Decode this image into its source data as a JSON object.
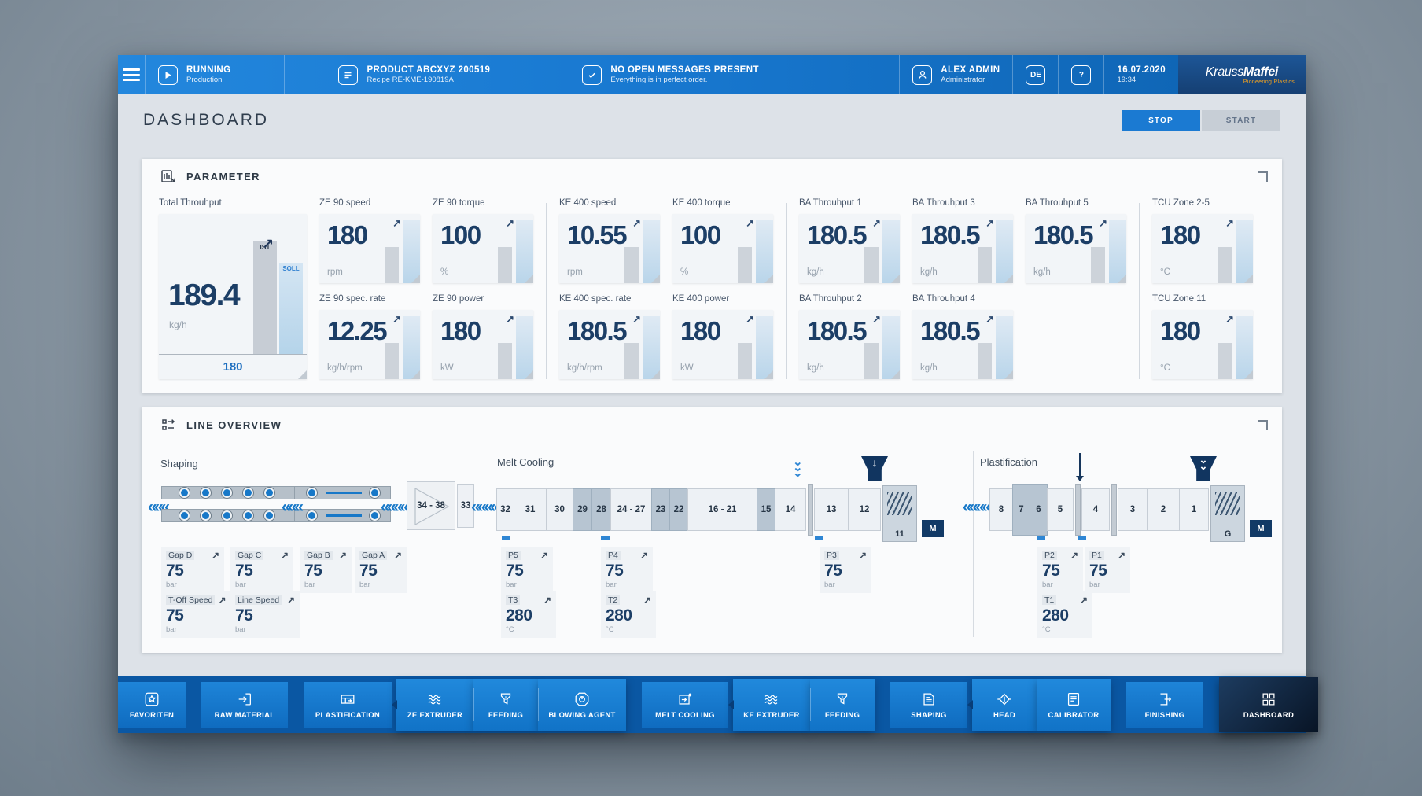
{
  "topbar": {
    "machine_status": {
      "title": "RUNNING",
      "subtitle": "Production"
    },
    "product": {
      "title": "PRODUCT ABCXYZ 200519",
      "subtitle": "Recipe RE-KME-190819A"
    },
    "messages": {
      "title": "NO OPEN MESSAGES PRESENT",
      "subtitle": "Everything is in perfect order."
    },
    "user": {
      "name": "ALEX ADMIN",
      "role": "Administrator"
    },
    "language_badge": "DE",
    "help_badge": "?",
    "date": "16.07.2020",
    "time": "19:34",
    "brand": {
      "name_a": "Krauss",
      "name_b": "Maffei",
      "tagline": "Pioneering Plastics"
    }
  },
  "page": {
    "title": "DASHBOARD",
    "stop": "STOP",
    "start": "START"
  },
  "parameter_panel": {
    "title": "PARAMETER",
    "total": {
      "label": "Total Throuhput",
      "value": "189.4",
      "unit": "kg/h",
      "setpoint": "180",
      "ist": "IST",
      "soll": "SOLL"
    },
    "tiles": {
      "ze_speed": {
        "label": "ZE 90 speed",
        "value": "180",
        "unit": "rpm"
      },
      "ze_torque": {
        "label": "ZE 90 torque",
        "value": "100",
        "unit": "%"
      },
      "ze_rate": {
        "label": "ZE 90 spec. rate",
        "value": "12.25",
        "unit": "kg/h/rpm"
      },
      "ze_power": {
        "label": "ZE 90 power",
        "value": "180",
        "unit": "kW"
      },
      "ke_speed": {
        "label": "KE 400 speed",
        "value": "10.55",
        "unit": "rpm"
      },
      "ke_torque": {
        "label": "KE 400 torque",
        "value": "100",
        "unit": "%"
      },
      "ke_rate": {
        "label": "KE 400 spec. rate",
        "value": "180.5",
        "unit": "kg/h/rpm"
      },
      "ke_power": {
        "label": "KE 400 power",
        "value": "180",
        "unit": "kW"
      },
      "ba1": {
        "label": "BA Throuhput 1",
        "value": "180.5",
        "unit": "kg/h"
      },
      "ba2": {
        "label": "BA Throuhput 2",
        "value": "180.5",
        "unit": "kg/h"
      },
      "ba3": {
        "label": "BA Throuhput 3",
        "value": "180.5",
        "unit": "kg/h"
      },
      "ba4": {
        "label": "BA Throuhput 4",
        "value": "180.5",
        "unit": "kg/h"
      },
      "ba5": {
        "label": "BA Throuhput 5",
        "value": "180.5",
        "unit": "kg/h"
      },
      "tcu25": {
        "label": "TCU Zone 2-5",
        "value": "180",
        "unit": "°C"
      },
      "tcu11": {
        "label": "TCU Zone 11",
        "value": "180",
        "unit": "°C"
      }
    }
  },
  "line_panel": {
    "title": "LINE OVERVIEW",
    "sections": {
      "shaping": "Shaping",
      "melt": "Melt Cooling",
      "plast": "Plastification"
    },
    "shaping": {
      "trapezoid": "34 - 38",
      "block": "33"
    },
    "melt_segments": [
      "32",
      "31",
      "30",
      "29",
      "28",
      "24 - 27",
      "23",
      "22",
      "16 - 21",
      "15",
      "14",
      "13",
      "12"
    ],
    "melt_screw": "11",
    "plast_segments": [
      "8",
      "7",
      "6",
      "5",
      "4",
      "3",
      "2",
      "1"
    ],
    "plast_gear": "G",
    "motor": "M",
    "chevrons": {
      "shaping_left": "«««",
      "shaping_mid": "«««",
      "shaping_right": "«««««",
      "melt_in": "«««««",
      "plast_in": "«««««"
    },
    "gauges": {
      "gap_d": {
        "label": "Gap D",
        "value": "75",
        "unit": "bar"
      },
      "gap_c": {
        "label": "Gap C",
        "value": "75",
        "unit": "bar"
      },
      "gap_b": {
        "label": "Gap B",
        "value": "75",
        "unit": "bar"
      },
      "gap_a": {
        "label": "Gap A",
        "value": "75",
        "unit": "bar"
      },
      "toff": {
        "label": "T-Off Speed",
        "value": "75",
        "unit": "bar"
      },
      "line_speed": {
        "label": "Line Speed",
        "value": "75",
        "unit": "bar"
      },
      "p5": {
        "label": "P5",
        "value": "75",
        "unit": "bar"
      },
      "p4": {
        "label": "P4",
        "value": "75",
        "unit": "bar"
      },
      "p3": {
        "label": "P3",
        "value": "75",
        "unit": "bar"
      },
      "t3": {
        "label": "T3",
        "value": "280",
        "unit": "°C"
      },
      "t2": {
        "label": "T2",
        "value": "280",
        "unit": "°C"
      },
      "p2": {
        "label": "P2",
        "value": "75",
        "unit": "bar"
      },
      "p1": {
        "label": "P1",
        "value": "75",
        "unit": "bar"
      },
      "t1": {
        "label": "T1",
        "value": "280",
        "unit": "°C"
      }
    }
  },
  "nav": {
    "items": [
      {
        "label": "FAVORITEN",
        "icon": "favorites"
      },
      {
        "label": "RAW MATERIAL",
        "icon": "raw-material"
      },
      {
        "label": "PLASTIFICATION",
        "icon": "plastification"
      },
      {
        "label": "ZE EXTRUDER",
        "icon": "extruder"
      },
      {
        "label": "FEEDING",
        "icon": "feeding"
      },
      {
        "label": "BLOWING AGENT",
        "icon": "blowing-agent"
      },
      {
        "label": "MELT COOLING",
        "icon": "melt-cooling"
      },
      {
        "label": "KE EXTRUDER",
        "icon": "extruder"
      },
      {
        "label": "FEEDING",
        "icon": "feeding"
      },
      {
        "label": "SHAPING",
        "icon": "shaping"
      },
      {
        "label": "HEAD",
        "icon": "head"
      },
      {
        "label": "CALIBRATOR",
        "icon": "calibrator"
      },
      {
        "label": "FINISHING",
        "icon": "finishing"
      },
      {
        "label": "DASHBOARD",
        "icon": "dashboard",
        "active": true
      }
    ]
  },
  "colors": {
    "accent_blue": "#1778cb",
    "navy_value": "#1c3e66",
    "topbar_blue": "#1878d0",
    "nav_active": "#0d1f35",
    "brand_orange": "#f5a31e",
    "status_stop_active": "#1b7ad2"
  }
}
